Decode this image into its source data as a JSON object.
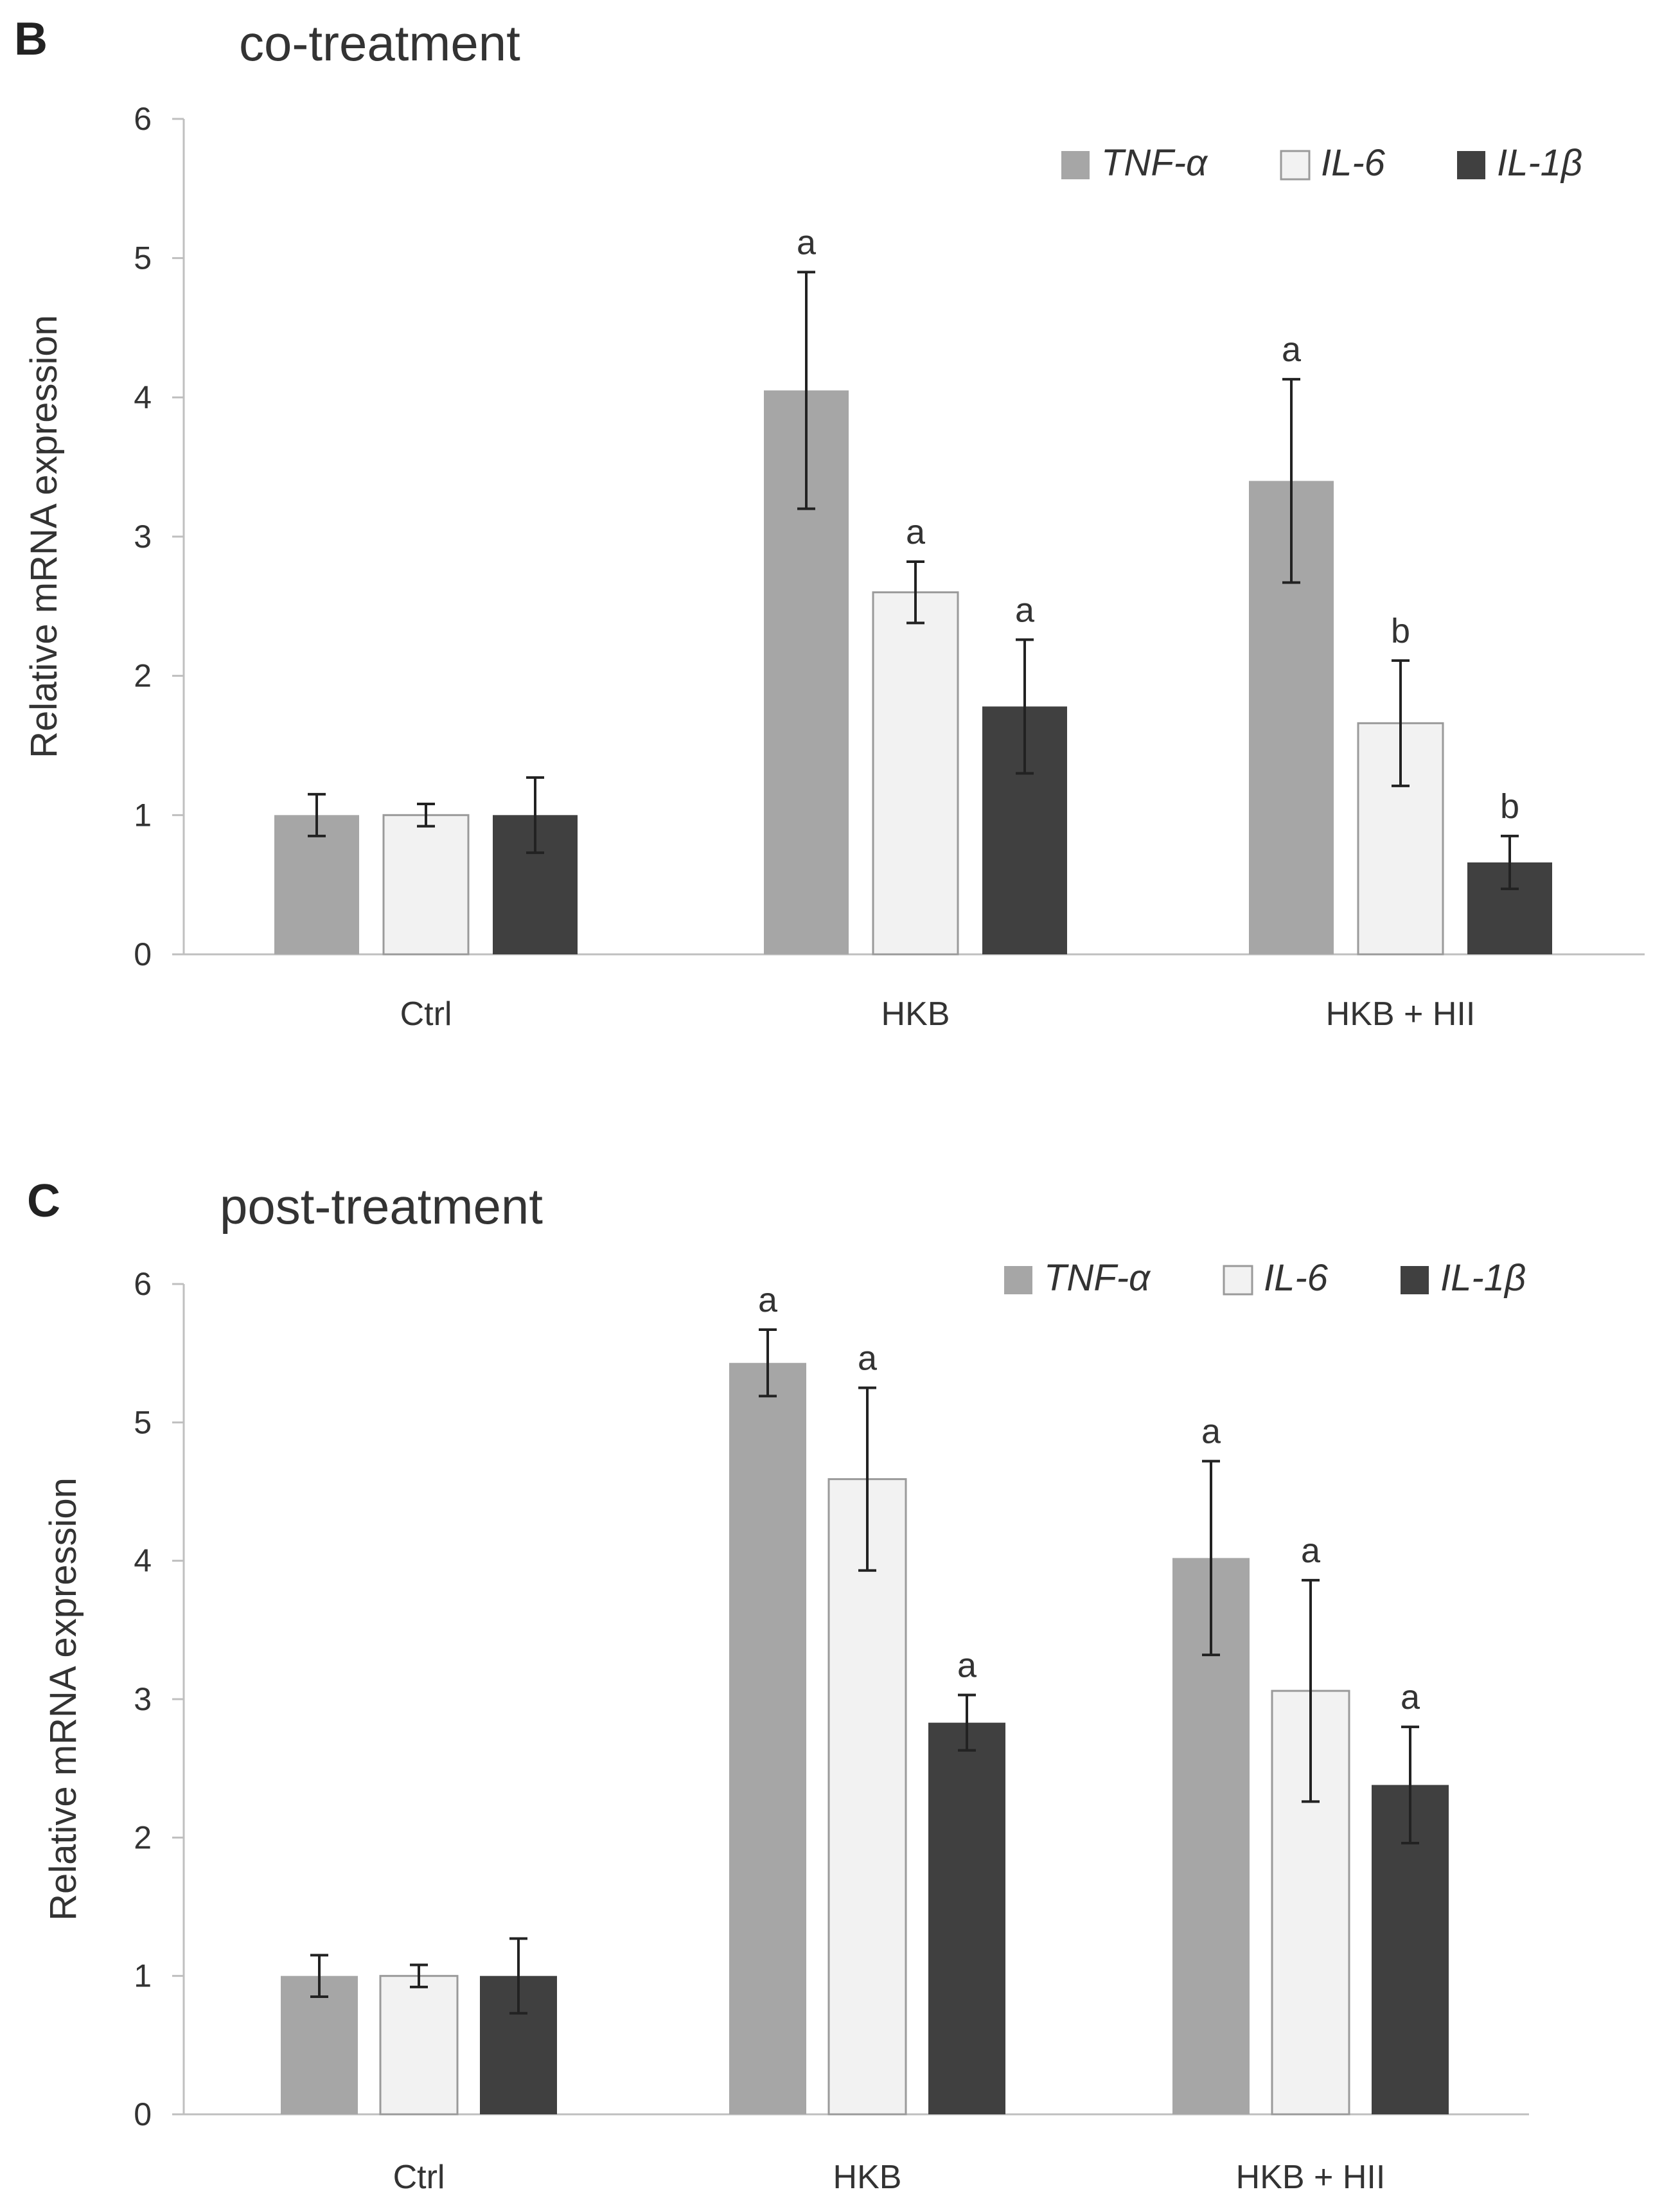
{
  "colors": {
    "tnf": "#a6a6a6",
    "il6": "#f2f2f2",
    "il1b": "#404040",
    "axis": "#bfbfbf",
    "text": "#333333"
  },
  "chart_data": [
    {
      "type": "bar",
      "panel_label": "B",
      "title": "co-treatment",
      "ylabel": "Relative mRNA expression",
      "xlabel": "",
      "ylim": [
        0,
        6
      ],
      "yticks": [
        "0",
        "1",
        "2",
        "3",
        "4",
        "5",
        "6"
      ],
      "categories": [
        "Ctrl",
        "HKB",
        "HKB + HII"
      ],
      "legend_position": "top-right",
      "grid": false,
      "series": [
        {
          "name": "TNF-α",
          "color": "#a6a6a6",
          "values": [
            1.0,
            4.05,
            3.4
          ],
          "error": [
            0.15,
            0.85,
            0.73
          ],
          "labels": [
            "",
            "a",
            "a"
          ]
        },
        {
          "name": "IL-6",
          "color": "#f2f2f2",
          "values": [
            1.0,
            2.6,
            1.66
          ],
          "error": [
            0.08,
            0.22,
            0.45
          ],
          "labels": [
            "",
            "a",
            "b"
          ]
        },
        {
          "name": "IL-1β",
          "color": "#404040",
          "values": [
            1.0,
            1.78,
            0.66
          ],
          "error": [
            0.27,
            0.48,
            0.19
          ],
          "labels": [
            "",
            "a",
            "b"
          ]
        }
      ]
    },
    {
      "type": "bar",
      "panel_label": "C",
      "title": "post-treatment",
      "ylabel": "Relative mRNA expression",
      "xlabel": "",
      "ylim": [
        0,
        6
      ],
      "yticks": [
        "0",
        "1",
        "2",
        "3",
        "4",
        "5",
        "6"
      ],
      "categories": [
        "Ctrl",
        "HKB",
        "HKB + HII"
      ],
      "legend_position": "top-right",
      "grid": false,
      "series": [
        {
          "name": "TNF-α",
          "color": "#a6a6a6",
          "values": [
            1.0,
            5.43,
            4.02
          ],
          "error": [
            0.15,
            0.24,
            0.7
          ],
          "labels": [
            "",
            "a",
            "a"
          ]
        },
        {
          "name": "IL-6",
          "color": "#f2f2f2",
          "values": [
            1.0,
            4.59,
            3.06
          ],
          "error": [
            0.08,
            0.66,
            0.8
          ],
          "labels": [
            "",
            "a",
            "a"
          ]
        },
        {
          "name": "IL-1β",
          "color": "#404040",
          "values": [
            1.0,
            2.83,
            2.38
          ],
          "error": [
            0.27,
            0.2,
            0.42
          ],
          "labels": [
            "",
            "a",
            "a"
          ]
        }
      ]
    }
  ]
}
